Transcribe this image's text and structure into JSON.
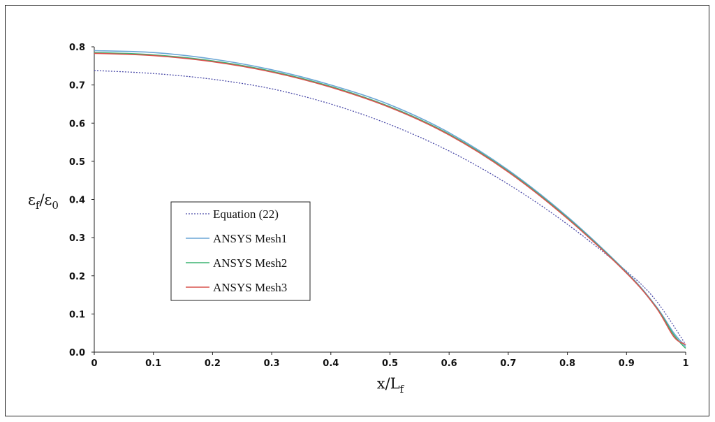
{
  "chart_data": {
    "type": "line",
    "title": "",
    "xlabel": "x/L",
    "xlabel_sub": "f",
    "ylabel_parts": [
      "ε",
      "f",
      "/ε",
      "0"
    ],
    "xlim": [
      0,
      1
    ],
    "ylim": [
      0,
      0.8
    ],
    "xticks": [
      "0",
      "0.1",
      "0.2",
      "0.3",
      "0.4",
      "0.5",
      "0.6",
      "0.7",
      "0.8",
      "0.9",
      "1"
    ],
    "yticks": [
      "0.0",
      "0.1",
      "0.2",
      "0.3",
      "0.4",
      "0.5",
      "0.6",
      "0.7",
      "0.8"
    ],
    "grid": false,
    "legend_position": "left-middle",
    "series": [
      {
        "name": "Equation (22)",
        "color": "#4a4aa8",
        "dashed": true,
        "x": [
          0,
          0.1,
          0.2,
          0.3,
          0.4,
          0.5,
          0.6,
          0.7,
          0.8,
          0.9,
          0.95,
          1
        ],
        "y": [
          0.738,
          0.73,
          0.715,
          0.69,
          0.65,
          0.596,
          0.527,
          0.44,
          0.335,
          0.212,
          0.135,
          0.02
        ]
      },
      {
        "name": "ANSYS Mesh1",
        "color": "#6aa6d6",
        "dashed": false,
        "x": [
          0,
          0.1,
          0.2,
          0.3,
          0.4,
          0.5,
          0.6,
          0.7,
          0.8,
          0.9,
          0.95,
          0.98,
          1
        ],
        "y": [
          0.79,
          0.785,
          0.768,
          0.74,
          0.7,
          0.648,
          0.575,
          0.477,
          0.355,
          0.21,
          0.12,
          0.05,
          0.015
        ]
      },
      {
        "name": "ANSYS Mesh2",
        "color": "#3cb371",
        "dashed": false,
        "x": [
          0,
          0.1,
          0.2,
          0.3,
          0.4,
          0.5,
          0.6,
          0.7,
          0.8,
          0.9,
          0.95,
          0.98,
          1
        ],
        "y": [
          0.785,
          0.779,
          0.763,
          0.736,
          0.696,
          0.643,
          0.571,
          0.474,
          0.352,
          0.208,
          0.118,
          0.045,
          0.01
        ]
      },
      {
        "name": "ANSYS Mesh3",
        "color": "#d9534f",
        "dashed": false,
        "x": [
          0,
          0.1,
          0.2,
          0.3,
          0.4,
          0.5,
          0.6,
          0.7,
          0.8,
          0.9,
          0.95,
          0.98,
          1
        ],
        "y": [
          0.783,
          0.777,
          0.761,
          0.734,
          0.694,
          0.641,
          0.569,
          0.472,
          0.35,
          0.207,
          0.117,
          0.04,
          0.02
        ]
      }
    ]
  }
}
